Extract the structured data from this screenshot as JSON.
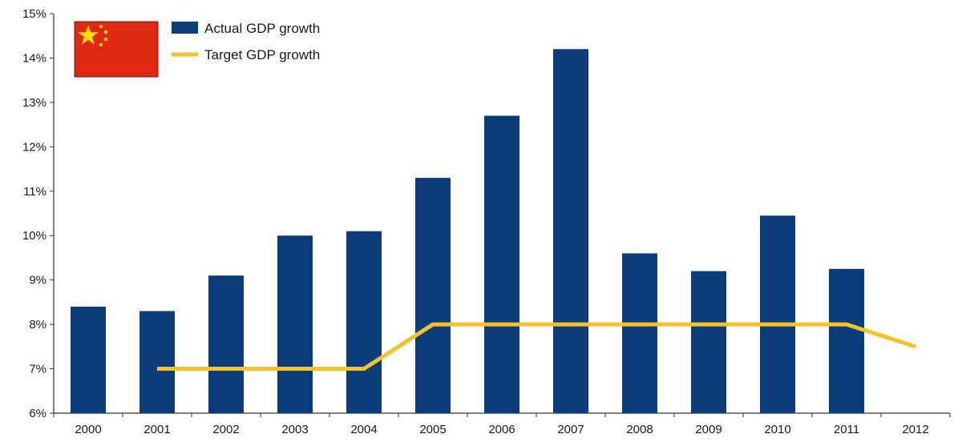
{
  "chart_data": {
    "type": "bar",
    "title": "",
    "xlabel": "",
    "ylabel": "",
    "categories": [
      "2000",
      "2001",
      "2002",
      "2003",
      "2004",
      "2005",
      "2006",
      "2007",
      "2008",
      "2009",
      "2010",
      "2011",
      "2012"
    ],
    "ylim": [
      6,
      15
    ],
    "y_ticks": [
      6,
      7,
      8,
      9,
      10,
      11,
      12,
      13,
      14,
      15
    ],
    "y_tick_labels": [
      "6%",
      "7%",
      "8%",
      "9%",
      "10%",
      "11%",
      "12%",
      "13%",
      "14%",
      "15%"
    ],
    "grid": false,
    "legend_position": "top-left",
    "series": [
      {
        "name": "Actual GDP growth",
        "type": "bar",
        "color": "#0a3d7a",
        "values": [
          8.4,
          8.3,
          9.1,
          10.0,
          10.1,
          11.3,
          12.7,
          14.2,
          9.6,
          9.2,
          10.45,
          9.25,
          null
        ]
      },
      {
        "name": "Target GDP growth",
        "type": "line",
        "color": "#f5c22a",
        "values": [
          null,
          7.0,
          7.0,
          7.0,
          7.0,
          8.0,
          8.0,
          8.0,
          8.0,
          8.0,
          8.0,
          8.0,
          7.5
        ]
      }
    ],
    "flag_icon": "china-flag-icon"
  }
}
